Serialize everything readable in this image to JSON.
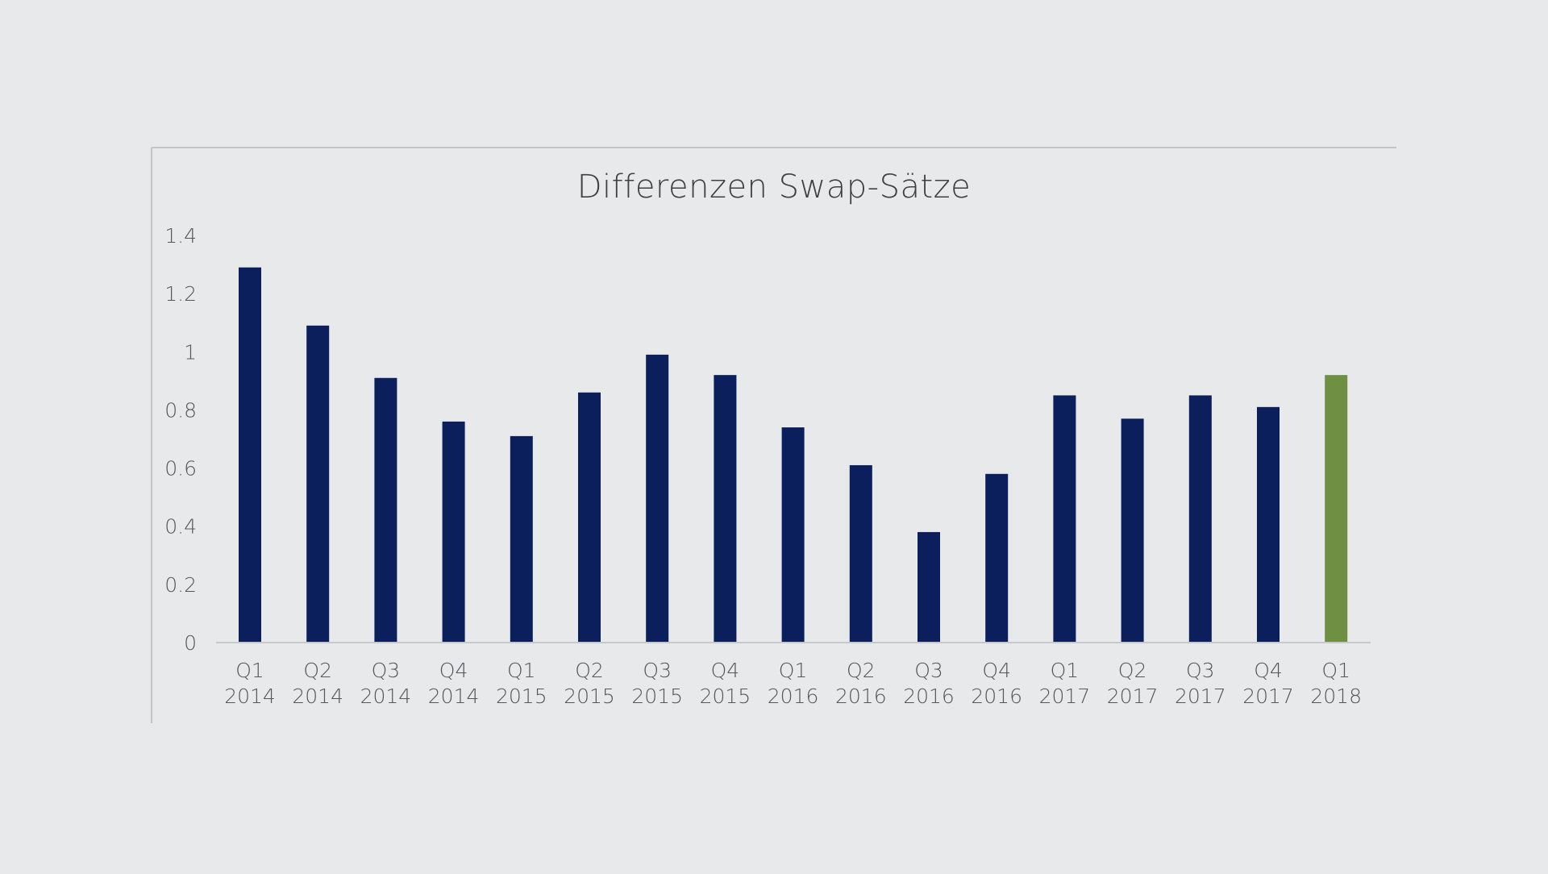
{
  "chart_data": {
    "type": "bar",
    "title": "Differenzen Swap-Sätze",
    "xlabel": "",
    "ylabel": "",
    "ylim": [
      0,
      1.4
    ],
    "yticks": [
      "0",
      "0.2",
      "0.4",
      "0.6",
      "0.8",
      "1",
      "1.2",
      "1.4"
    ],
    "grid": false,
    "legend": "none",
    "categories": [
      [
        "Q1",
        "2014"
      ],
      [
        "Q2",
        "2014"
      ],
      [
        "Q3",
        "2014"
      ],
      [
        "Q4",
        "2014"
      ],
      [
        "Q1",
        "2015"
      ],
      [
        "Q2",
        "2015"
      ],
      [
        "Q3",
        "2015"
      ],
      [
        "Q4",
        "2015"
      ],
      [
        "Q1",
        "2016"
      ],
      [
        "Q2",
        "2016"
      ],
      [
        "Q3",
        "2016"
      ],
      [
        "Q4",
        "2016"
      ],
      [
        "Q1",
        "2017"
      ],
      [
        "Q2",
        "2017"
      ],
      [
        "Q3",
        "2017"
      ],
      [
        "Q4",
        "2017"
      ],
      [
        "Q1",
        "2018"
      ]
    ],
    "values": [
      1.29,
      1.09,
      0.91,
      0.76,
      0.71,
      0.86,
      0.99,
      0.92,
      0.74,
      0.61,
      0.38,
      0.58,
      0.85,
      0.77,
      0.85,
      0.81,
      0.92
    ],
    "colors": {
      "default": "#0b1f5c",
      "highlight": "#6f8f43",
      "axis": "#c7c8cb",
      "frame": "#c3c4c7"
    },
    "highlight_index": 16
  }
}
